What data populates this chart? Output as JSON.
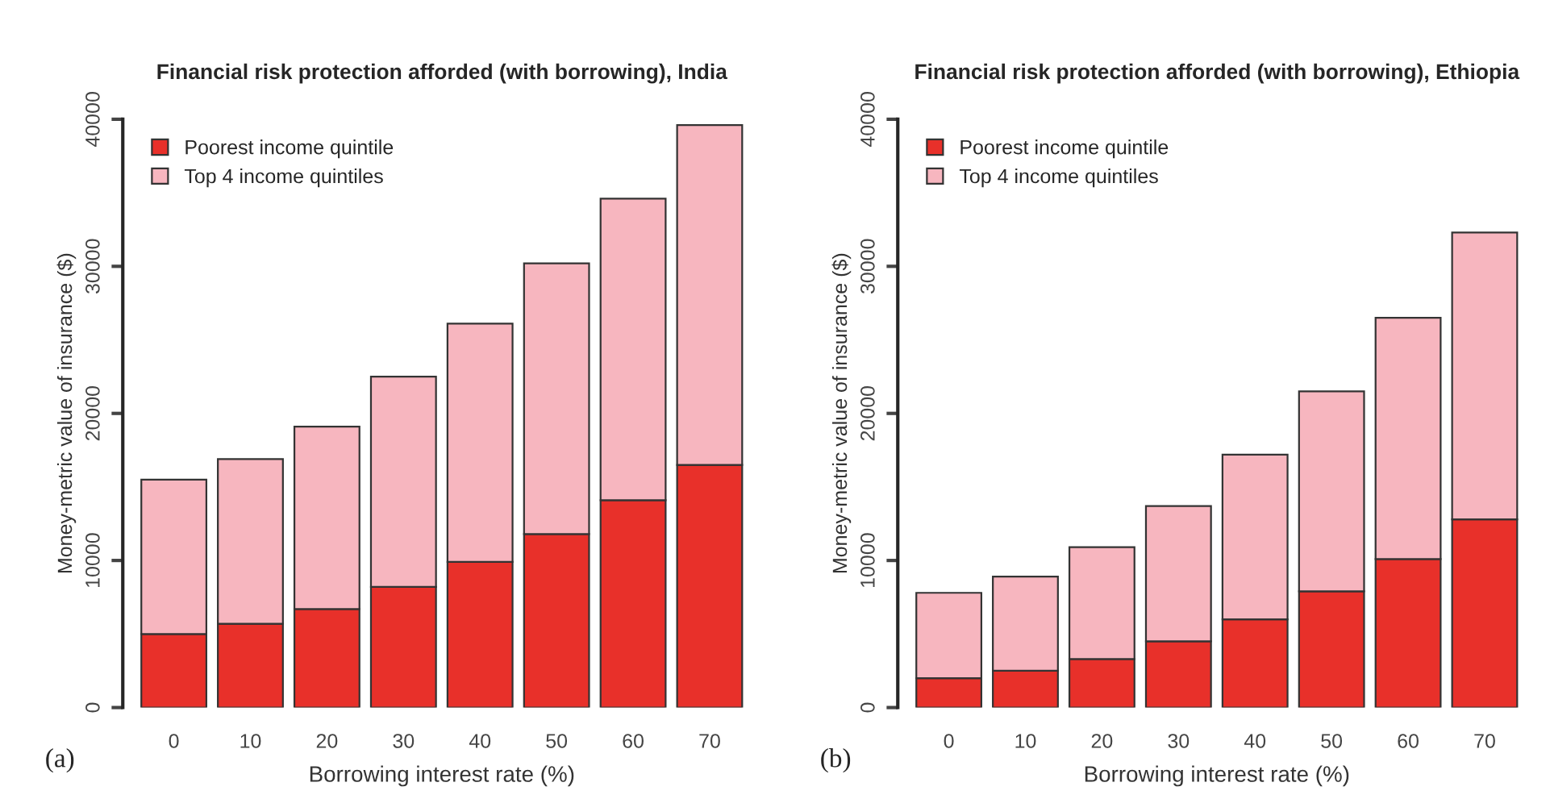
{
  "chart_data": [
    {
      "type": "bar",
      "title": "Financial risk protection afforded (with borrowing), India",
      "xlabel": "Borrowing interest rate (%)",
      "ylabel": "Money-metric value of insurance ($)",
      "annotations": [
        "(a)"
      ],
      "categories": [
        "0",
        "10",
        "20",
        "30",
        "40",
        "50",
        "60",
        "70"
      ],
      "stacked": true,
      "legend": "top left",
      "grid": false,
      "ylim": [
        0,
        40000
      ],
      "yticks": [
        0,
        10000,
        20000,
        30000,
        40000
      ],
      "series": [
        {
          "name": "Poorest income quintile",
          "color": "#e8302a",
          "values": [
            5000,
            5700,
            6700,
            8200,
            9900,
            11800,
            14100,
            16500
          ]
        },
        {
          "name": "Top 4 income quintiles",
          "color": "#f7b6bf",
          "values": [
            10500,
            11200,
            12400,
            14300,
            16200,
            18400,
            20500,
            23100
          ]
        }
      ]
    },
    {
      "type": "bar",
      "title": "Financial risk protection afforded (with borrowing), Ethiopia",
      "xlabel": "Borrowing interest rate (%)",
      "ylabel": "Money-metric value of insurance ($)",
      "annotations": [
        "(b)"
      ],
      "categories": [
        "0",
        "10",
        "20",
        "30",
        "40",
        "50",
        "60",
        "70"
      ],
      "stacked": true,
      "legend": "top left",
      "grid": false,
      "ylim": [
        0,
        40000
      ],
      "yticks": [
        0,
        10000,
        20000,
        30000,
        40000
      ],
      "series": [
        {
          "name": "Poorest income quintile",
          "color": "#e8302a",
          "values": [
            2000,
            2500,
            3300,
            4500,
            6000,
            7900,
            10100,
            12800
          ]
        },
        {
          "name": "Top 4 income quintiles",
          "color": "#f7b6bf",
          "values": [
            5800,
            6400,
            7600,
            9200,
            11200,
            13600,
            16400,
            19500
          ]
        }
      ]
    }
  ]
}
